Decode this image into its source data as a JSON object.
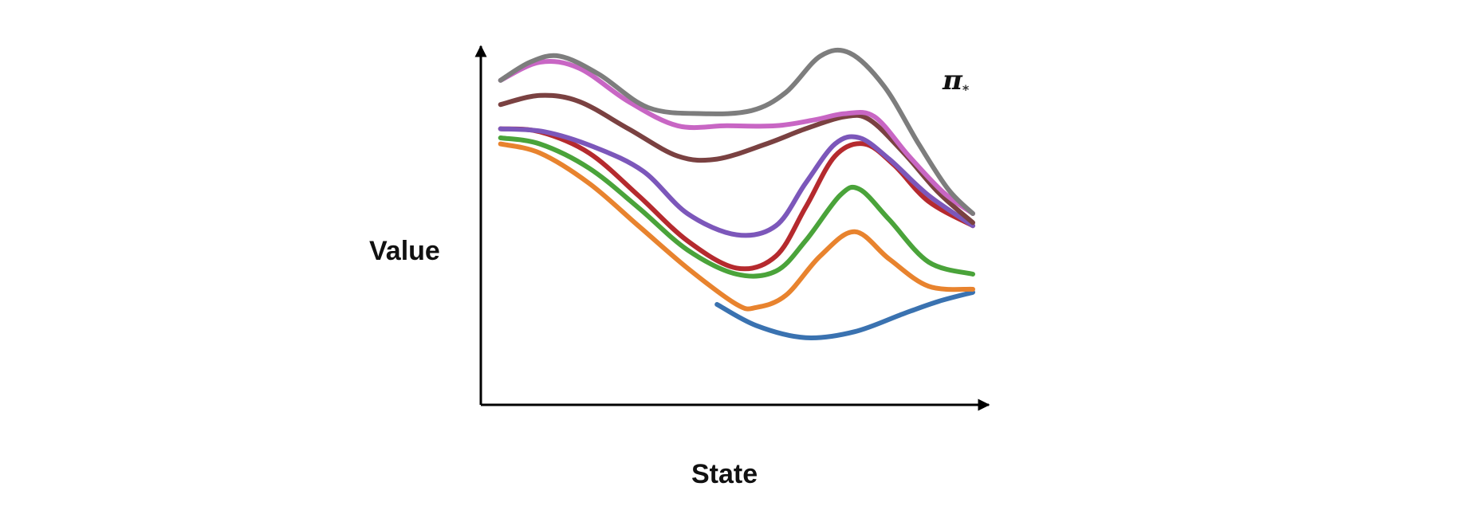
{
  "chart_data": {
    "type": "line",
    "title": "",
    "xlabel": "State",
    "ylabel": "Value",
    "xlim": [
      0,
      10
    ],
    "ylim": [
      0,
      10
    ],
    "grid": false,
    "legend": "none",
    "annotation": {
      "symbol": "π",
      "subscript": "*",
      "near_series": "pi-star"
    },
    "series": [
      {
        "id": "blue",
        "color": "#3a72b0",
        "x": [
          4.8,
          5.6,
          6.6,
          7.6,
          8.6,
          9.3,
          10.0
        ],
        "y": [
          2.0,
          1.3,
          0.9,
          1.1,
          1.7,
          2.1,
          2.4
        ]
      },
      {
        "id": "orange",
        "color": "#e8832e",
        "x": [
          0.4,
          1.2,
          2.2,
          3.2,
          4.2,
          5.2,
          5.6,
          6.2,
          6.9,
          7.6,
          8.3,
          9.1,
          10.0
        ],
        "y": [
          7.3,
          7.0,
          6.0,
          4.6,
          3.2,
          2.0,
          1.9,
          2.3,
          3.6,
          4.4,
          3.5,
          2.6,
          2.5
        ]
      },
      {
        "id": "green",
        "color": "#4aa33a",
        "x": [
          0.4,
          1.2,
          2.2,
          3.2,
          4.2,
          5.2,
          6.0,
          6.6,
          7.3,
          7.7,
          8.3,
          9.1,
          10.0
        ],
        "y": [
          7.5,
          7.3,
          6.5,
          5.2,
          3.8,
          3.0,
          3.1,
          4.1,
          5.6,
          5.8,
          4.8,
          3.4,
          3.0
        ]
      },
      {
        "id": "red",
        "color": "#b52a2e",
        "x": [
          0.4,
          1.2,
          2.2,
          3.2,
          4.2,
          5.2,
          6.0,
          6.6,
          7.2,
          7.8,
          8.4,
          9.1,
          10.0
        ],
        "y": [
          7.8,
          7.7,
          7.0,
          5.6,
          4.1,
          3.2,
          3.6,
          5.2,
          6.9,
          7.3,
          6.6,
          5.4,
          4.6
        ]
      },
      {
        "id": "purple",
        "color": "#7c57ba",
        "x": [
          0.4,
          1.3,
          2.3,
          3.3,
          4.2,
          5.2,
          6.0,
          6.6,
          7.2,
          7.7,
          8.3,
          9.1,
          10.0
        ],
        "y": [
          7.8,
          7.7,
          7.2,
          6.4,
          5.0,
          4.3,
          4.6,
          6.0,
          7.3,
          7.5,
          6.8,
          5.6,
          4.6
        ]
      },
      {
        "id": "brown",
        "color": "#7a4141",
        "x": [
          0.4,
          1.2,
          2.0,
          3.0,
          4.0,
          4.8,
          5.8,
          6.6,
          7.4,
          7.9,
          8.6,
          9.3,
          10.0
        ],
        "y": [
          8.6,
          8.9,
          8.7,
          7.8,
          6.9,
          6.8,
          7.3,
          7.8,
          8.2,
          8.1,
          7.0,
          5.7,
          4.7
        ]
      },
      {
        "id": "pink",
        "color": "#c866c4",
        "x": [
          0.4,
          1.2,
          2.0,
          3.0,
          4.0,
          5.0,
          6.0,
          6.8,
          7.4,
          8.0,
          8.7,
          9.4,
          10.0
        ],
        "y": [
          9.4,
          10.0,
          9.8,
          8.7,
          7.9,
          7.9,
          7.9,
          8.1,
          8.3,
          8.2,
          6.9,
          5.7,
          5.0
        ]
      },
      {
        "id": "pi-star",
        "color": "#7d7d7d",
        "x": [
          0.4,
          1.0,
          1.6,
          2.4,
          3.4,
          4.5,
          5.5,
          6.2,
          6.9,
          7.5,
          8.2,
          8.9,
          9.5,
          10.0
        ],
        "y": [
          9.4,
          10.0,
          10.2,
          9.6,
          8.5,
          8.3,
          8.4,
          9.0,
          10.2,
          10.3,
          9.2,
          7.3,
          5.8,
          5.0
        ]
      }
    ]
  }
}
